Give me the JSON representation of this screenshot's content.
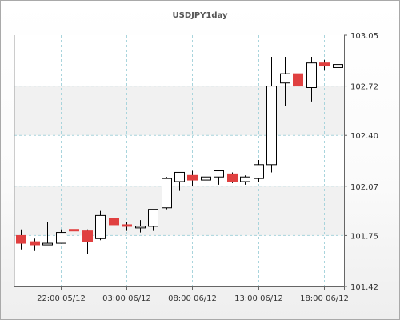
{
  "chart_data": {
    "type": "candlestick",
    "title": "USDJPY1day",
    "x_tick_labels": [
      "22:00 05/12",
      "03:00 06/12",
      "08:00 06/12",
      "13:00 06/12",
      "18:00 06/12"
    ],
    "y_ticks": [
      101.42,
      101.75,
      102.07,
      102.4,
      102.72,
      103.05
    ],
    "y_tick_labels": [
      "101.42",
      "101.75",
      "102.07",
      "102.40",
      "102.72",
      "103.05"
    ],
    "ylim": [
      101.42,
      103.05
    ],
    "grid": true,
    "up_color": "#ffffff",
    "down_color": "#e04040",
    "candles": [
      {
        "o": 101.75,
        "h": 101.79,
        "l": 101.66,
        "c": 101.7
      },
      {
        "o": 101.71,
        "h": 101.73,
        "l": 101.65,
        "c": 101.69
      },
      {
        "o": 101.7,
        "h": 101.84,
        "l": 101.69,
        "c": 101.7
      },
      {
        "o": 101.7,
        "h": 101.79,
        "l": 101.7,
        "c": 101.77
      },
      {
        "o": 101.79,
        "h": 101.8,
        "l": 101.76,
        "c": 101.78
      },
      {
        "o": 101.78,
        "h": 101.79,
        "l": 101.63,
        "c": 101.71
      },
      {
        "o": 101.73,
        "h": 101.91,
        "l": 101.72,
        "c": 101.88
      },
      {
        "o": 101.86,
        "h": 101.94,
        "l": 101.79,
        "c": 101.82
      },
      {
        "o": 101.82,
        "h": 101.84,
        "l": 101.78,
        "c": 101.81
      },
      {
        "o": 101.8,
        "h": 101.85,
        "l": 101.77,
        "c": 101.81
      },
      {
        "o": 101.81,
        "h": 101.91,
        "l": 101.78,
        "c": 101.92
      },
      {
        "o": 101.93,
        "h": 102.13,
        "l": 101.92,
        "c": 102.12
      },
      {
        "o": 102.1,
        "h": 102.15,
        "l": 102.04,
        "c": 102.16
      },
      {
        "o": 102.14,
        "h": 102.17,
        "l": 102.07,
        "c": 102.11
      },
      {
        "o": 102.11,
        "h": 102.16,
        "l": 102.09,
        "c": 102.13
      },
      {
        "o": 102.13,
        "h": 102.17,
        "l": 102.08,
        "c": 102.17
      },
      {
        "o": 102.15,
        "h": 102.16,
        "l": 102.09,
        "c": 102.1
      },
      {
        "o": 102.1,
        "h": 102.14,
        "l": 102.08,
        "c": 102.13
      },
      {
        "o": 102.12,
        "h": 102.24,
        "l": 102.1,
        "c": 102.21
      },
      {
        "o": 102.21,
        "h": 102.91,
        "l": 102.16,
        "c": 102.72
      },
      {
        "o": 102.74,
        "h": 102.91,
        "l": 102.59,
        "c": 102.8
      },
      {
        "o": 102.8,
        "h": 102.88,
        "l": 102.5,
        "c": 102.72
      },
      {
        "o": 102.71,
        "h": 102.91,
        "l": 102.62,
        "c": 102.87
      },
      {
        "o": 102.87,
        "h": 102.89,
        "l": 102.82,
        "c": 102.85
      },
      {
        "o": 102.84,
        "h": 102.93,
        "l": 102.83,
        "c": 102.86
      }
    ]
  }
}
